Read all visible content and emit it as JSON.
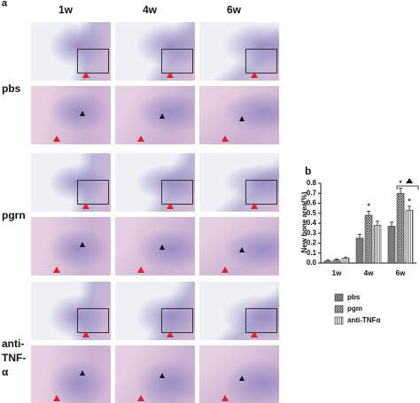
{
  "panel_a": {
    "label": "a",
    "columns": [
      "1w",
      "4w",
      "6w"
    ],
    "rows": [
      "pbs",
      "pgrn",
      "anti-TNF-α"
    ]
  },
  "panel_b": {
    "label": "b"
  },
  "chart_data": {
    "type": "bar",
    "ylabel": "New bone area(%)",
    "categories": [
      "1w",
      "4w",
      "6w"
    ],
    "series": [
      {
        "name": "pbs",
        "color": "#7a7a7a",
        "pattern": "solid",
        "values": [
          0.02,
          0.25,
          0.37
        ],
        "errors": [
          0.01,
          0.04,
          0.04
        ]
      },
      {
        "name": "pgm",
        "color": "#555555",
        "pattern": "crosshatch",
        "values": [
          0.03,
          0.48,
          0.7
        ],
        "errors": [
          0.01,
          0.04,
          0.05
        ]
      },
      {
        "name": "anti-TNFα",
        "color": "#555555",
        "pattern": "stripes",
        "values": [
          0.05,
          0.38,
          0.53
        ],
        "errors": [
          0.01,
          0.04,
          0.04
        ]
      }
    ],
    "annotations": [
      {
        "text": "*",
        "category": "4w",
        "series": "pgm"
      },
      {
        "text": "*",
        "category": "6w",
        "series": "pgm"
      },
      {
        "text": "*",
        "category": "6w",
        "series": "anti-TNFα"
      }
    ],
    "ylim": [
      0,
      0.8
    ],
    "yticks": [
      {
        "value": 0,
        "label": "0.0"
      },
      0.1,
      0.2,
      0.3,
      0.4,
      0.5,
      0.6,
      0.7,
      0.8
    ]
  }
}
